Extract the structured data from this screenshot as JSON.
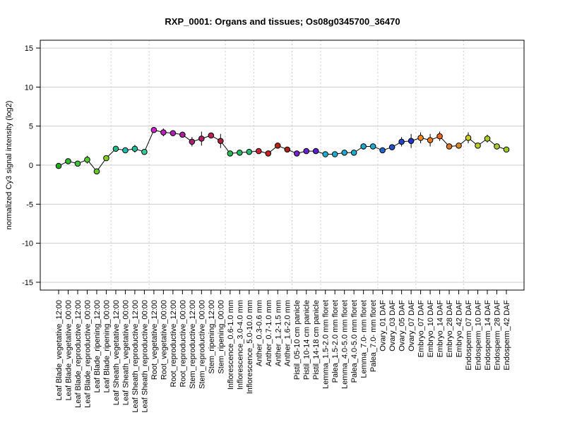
{
  "chart_data": {
    "type": "line",
    "title": "RXP_0001: Organs and tissues; Os08g0345700_36470",
    "xlabel": "",
    "ylabel": "normalized Cy3 signal intensity (log2)",
    "ylim": [
      -16,
      16
    ],
    "yticks": [
      -15,
      -10,
      -5,
      0,
      5,
      10,
      15
    ],
    "grid": true,
    "categories": [
      "Leaf Blade_vegetative_12:00",
      "Leaf Blade_vegetative_00:00",
      "Leaf Blade_reproductive_12:00",
      "Leaf Blade_reproductive_00:00",
      "Leaf Blade_ripening_12:00",
      "Leaf Blade_ripening_00:00",
      "Leaf Sheath_vegetative_12:00",
      "Leaf Sheath_vegetative_00:00",
      "Leaf Sheath_reproductive_12:00",
      "Leaf Sheath_reproductive_00:00",
      "Root_vegetative_12:00",
      "Root_vegetative_00:00",
      "Root_reproductive_12:00",
      "Root_reproductive_00:00",
      "Stem_reproductive_12:00",
      "Stem_reproductive_00:00",
      "Stem_ripening_12:00",
      "Stem_ripening_00:00",
      "Inflorescence_0.6-1.0 mm",
      "Inflorescence_3.0-4.0 mm",
      "Inflorescence_5.0-10.0 mm",
      "Anther_0.3-0.6 mm",
      "Anther_0.7-1.0 mm",
      "Anther_1.2-1.5 mm",
      "Anther_1.6-2.0 mm",
      "Pistil_05-10 cm panicle",
      "Pistil_10-14 cm panicle",
      "Pistil_14-18 cm panicle",
      "Lemma_1.5-2.0 mm floret",
      "Palea_1.5-2.0 mm floret",
      "Lemma_4.0-5.0 mm floret",
      "Palea_4.0-5.0 mm floret",
      "Lemma_7.0- mm floret",
      "Palea_7.0- mm floret",
      "Ovary_01 DAF",
      "Ovary_03 DAF",
      "Ovary_05 DAF",
      "Ovary_07 DAF",
      "Embryo_07 DAF",
      "Embryo_10 DAF",
      "Embryo_14 DAF",
      "Embryo_28 DAF",
      "Embryo_42 DAF",
      "Endosperm_07 DAF",
      "Endosperm_10 DAF",
      "Endosperm_14 DAF",
      "Endosperm_28 DAF",
      "Endosperm_42 DAF"
    ],
    "values": [
      -0.1,
      0.5,
      0.2,
      0.7,
      -0.8,
      0.9,
      2.1,
      1.9,
      2.1,
      1.7,
      4.5,
      4.2,
      4.1,
      3.9,
      3.0,
      3.4,
      3.8,
      3.1,
      1.5,
      1.6,
      1.7,
      1.8,
      1.5,
      2.5,
      2.0,
      1.5,
      1.8,
      1.8,
      1.4,
      1.4,
      1.6,
      1.6,
      2.4,
      2.4,
      1.9,
      2.3,
      3.0,
      3.1,
      3.5,
      3.2,
      3.7,
      2.4,
      2.5,
      3.5,
      2.5,
      3.4,
      2.4,
      2.0
    ],
    "errors": [
      0.2,
      0.2,
      0.2,
      0.5,
      0.2,
      0.2,
      0.3,
      0.2,
      0.5,
      0.2,
      0.2,
      0.5,
      0.2,
      0.2,
      0.6,
      0.9,
      0.2,
      0.9,
      0.2,
      0.2,
      0.2,
      0.2,
      0.2,
      0.2,
      0.2,
      0.2,
      0.2,
      0.2,
      0.2,
      0.2,
      0.2,
      0.2,
      0.4,
      0.2,
      0.2,
      0.2,
      0.6,
      0.9,
      0.7,
      0.8,
      0.6,
      0.2,
      0.2,
      0.7,
      0.3,
      0.5,
      0.2,
      0.2
    ],
    "point_colors": [
      "#22aa22",
      "#2fba2f",
      "#3fc33f",
      "#52cc2e",
      "#66cc22",
      "#88cc22",
      "#22bb88",
      "#22bbaa",
      "#22bb99",
      "#33cc99",
      "#cc22cc",
      "#bb22bb",
      "#aa22aa",
      "#aa2299",
      "#aa2277",
      "#aa2266",
      "#bb2255",
      "#aa2244",
      "#22bb55",
      "#22bb66",
      "#22bb77",
      "#cc2233",
      "#cc2222",
      "#bb2211",
      "#aa2211",
      "#7722cc",
      "#6622cc",
      "#5522cc",
      "#22aacc",
      "#22aacc",
      "#22aacc",
      "#22aacc",
      "#22aacc",
      "#22aacc",
      "#2266cc",
      "#2255cc",
      "#2244cc",
      "#2233cc",
      "#ee8822",
      "#ee7722",
      "#ee6622",
      "#dd7722",
      "#dd8822",
      "#cccc22",
      "#bbcc22",
      "#aacc22",
      "#aacc33",
      "#99cc22"
    ],
    "line_color": "#000000",
    "grid_color": "#cccccc"
  }
}
